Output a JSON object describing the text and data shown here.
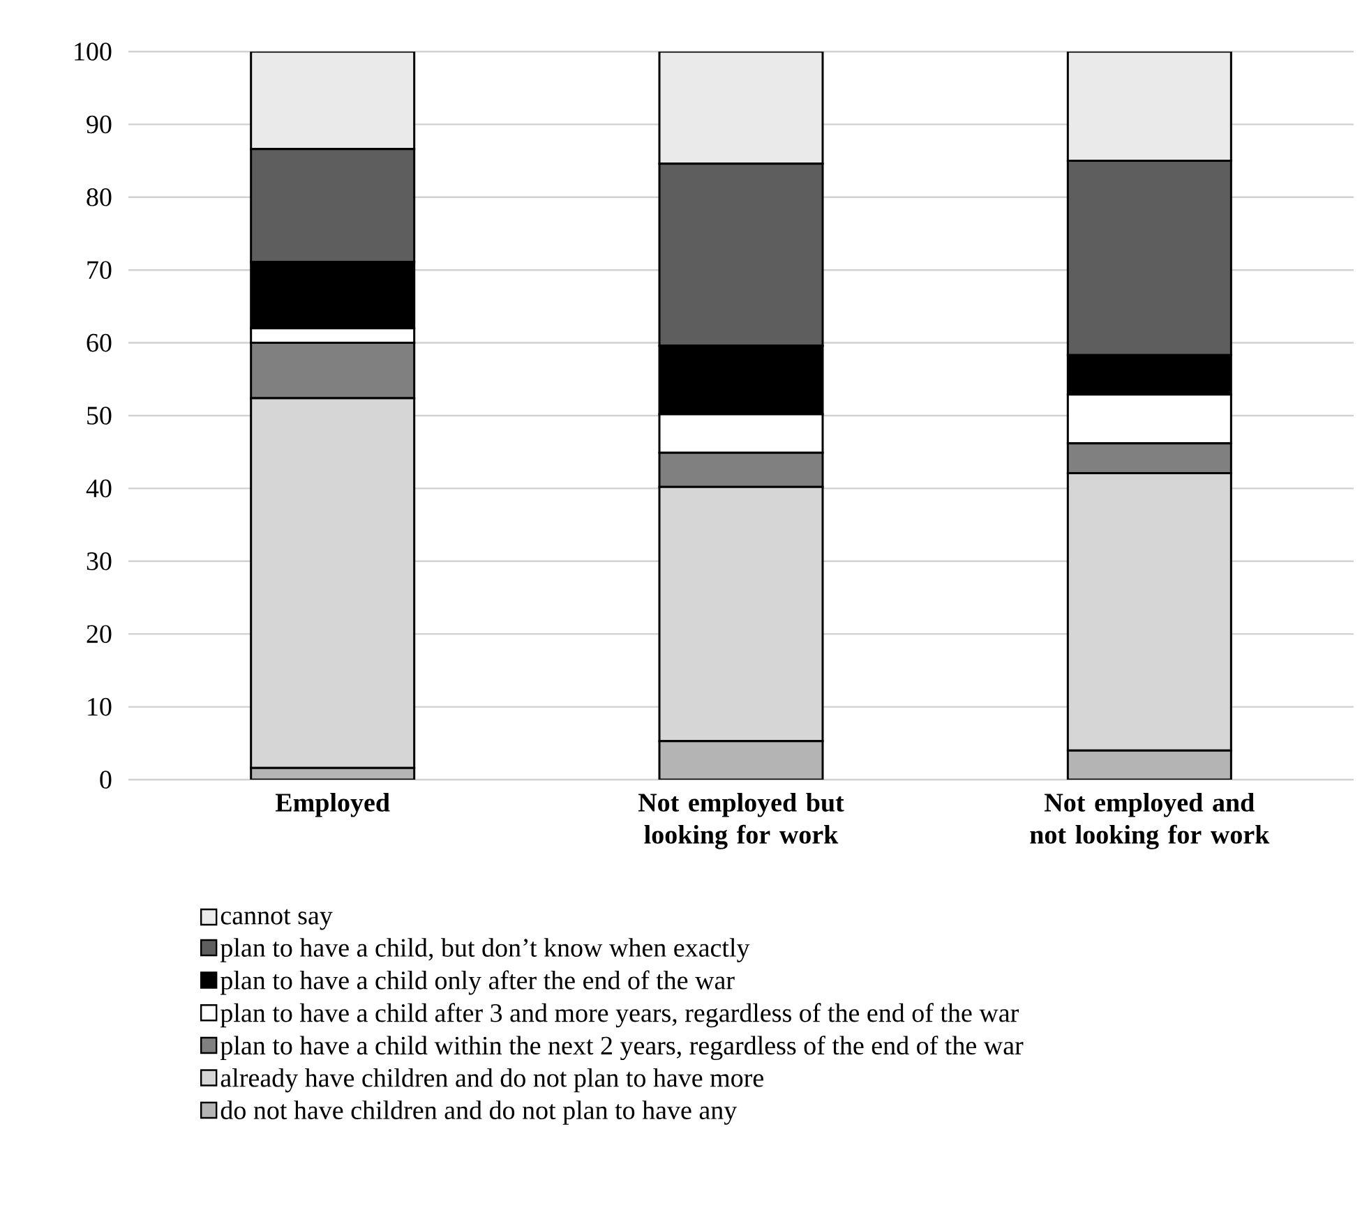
{
  "chart_data": {
    "type": "bar",
    "stacked": true,
    "categories": [
      "Employed",
      "Not employed but looking for work",
      "Not employed and not looking for work"
    ],
    "series": [
      {
        "name": "do not have children and do not plan to have any",
        "color": "#b4b4b4",
        "values": [
          1.6,
          5.3,
          4.0
        ]
      },
      {
        "name": "already have children and do not plan to have more",
        "color": "#d6d6d6",
        "values": [
          50.8,
          34.9,
          38.1
        ]
      },
      {
        "name": "plan to have a child within the next 2 years, regardless of the end of the war",
        "color": "#808080",
        "values": [
          7.6,
          4.7,
          4.1
        ]
      },
      {
        "name": "plan to have a child after 3 and more years, regardless of the end of the war",
        "color": "#ffffff",
        "values": [
          2.0,
          5.3,
          6.7
        ]
      },
      {
        "name": "plan to have a child only after the end of the war",
        "color": "#000000",
        "values": [
          9.1,
          9.4,
          5.4
        ]
      },
      {
        "name": "plan to have a child, but don’t know when exactly",
        "color": "#5e5e5e",
        "values": [
          15.5,
          25.0,
          26.7
        ]
      },
      {
        "name": "cannot say",
        "color": "#eaeaea",
        "values": [
          13.4,
          15.4,
          15.0
        ]
      }
    ],
    "ylim": [
      0,
      100
    ],
    "yticks": [
      0,
      10,
      20,
      30,
      40,
      50,
      60,
      70,
      80,
      90,
      100
    ],
    "grid": "y",
    "legend": "bottom"
  }
}
